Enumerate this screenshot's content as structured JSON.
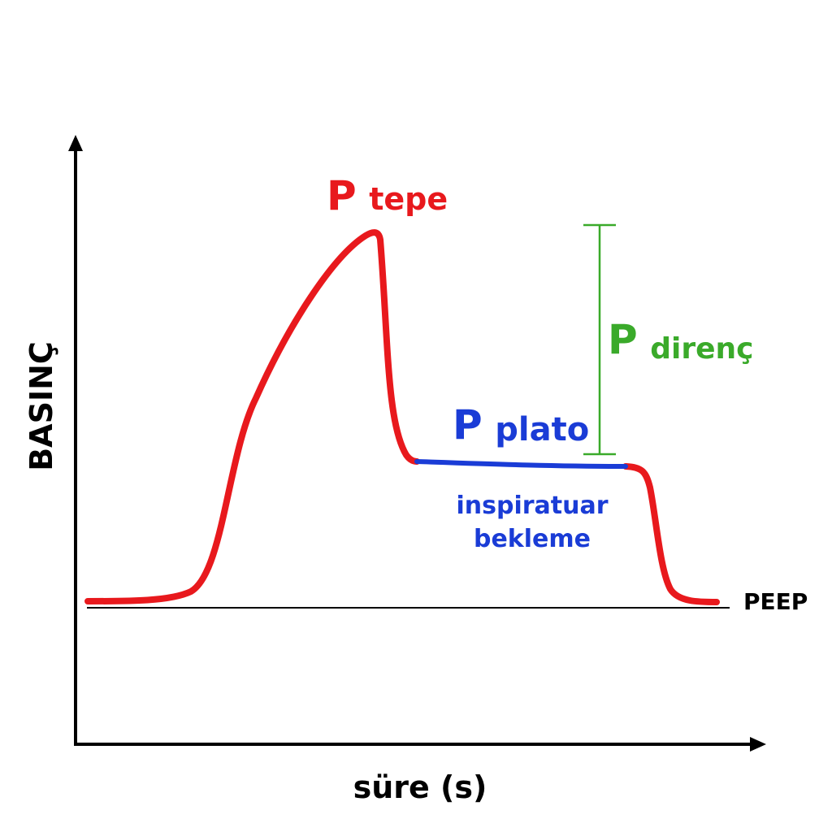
{
  "axes": {
    "y_label": "BASINÇ",
    "x_label": "süre (s)"
  },
  "labels": {
    "peep": "PEEP",
    "peak": {
      "main": "P",
      "sub": "tepe"
    },
    "plateau": {
      "main": "P",
      "sub": "plato"
    },
    "resistance": {
      "main": "P",
      "sub": "direnç"
    },
    "hold_line1": "inspiratuar",
    "hold_line2": "bekleme"
  },
  "colors": {
    "axis": "#000000",
    "pressure_curve": "#e8191d",
    "plateau_segment": "#1a3cd6",
    "resistance_marker": "#3aaa2a",
    "hold_text": "#1a3cd6"
  }
}
